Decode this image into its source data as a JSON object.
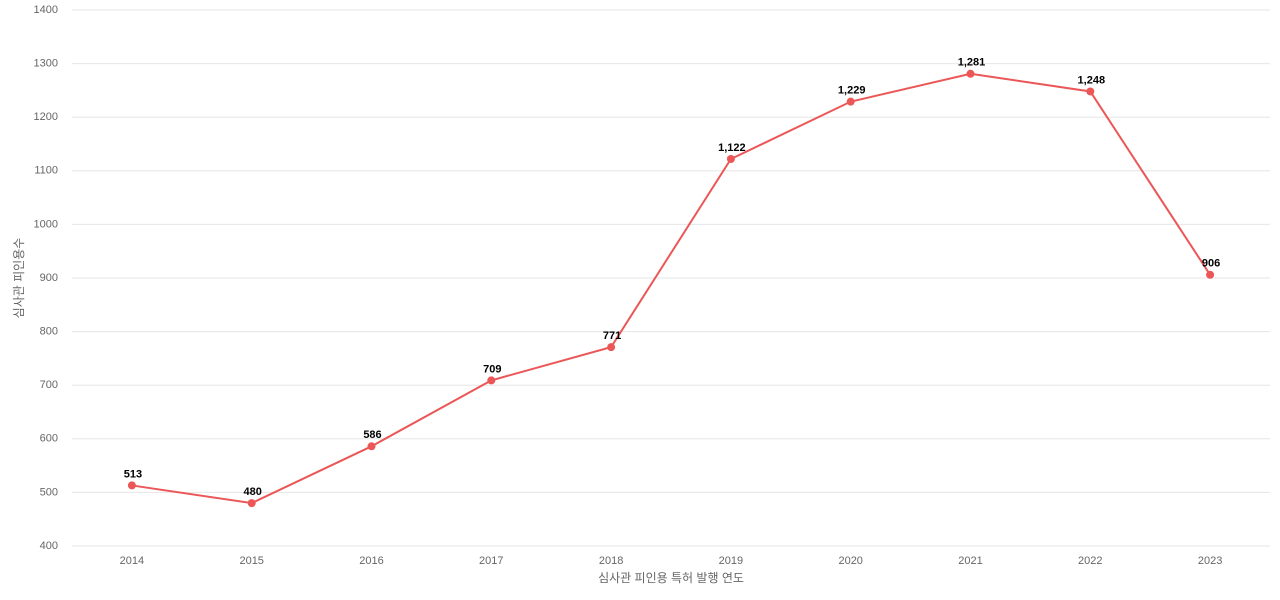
{
  "chart_data": {
    "type": "line",
    "x_label": "심사관 피인용 특허 발행 연도",
    "y_label": "심사관 피인용수",
    "categories": [
      "2014",
      "2015",
      "2016",
      "2017",
      "2018",
      "2019",
      "2020",
      "2021",
      "2022",
      "2023"
    ],
    "values": [
      513,
      480,
      586,
      709,
      771,
      1122,
      1229,
      1281,
      1248,
      906
    ],
    "value_labels": [
      "513",
      "480",
      "586",
      "709",
      "771",
      "1,122",
      "1,229",
      "1,281",
      "1,248",
      "906"
    ],
    "color": "#eb5757",
    "ylim": [
      400,
      1400
    ],
    "yticks": [
      400,
      500,
      600,
      700,
      800,
      900,
      1000,
      1100,
      1200,
      1300,
      1400
    ],
    "grid": true
  }
}
